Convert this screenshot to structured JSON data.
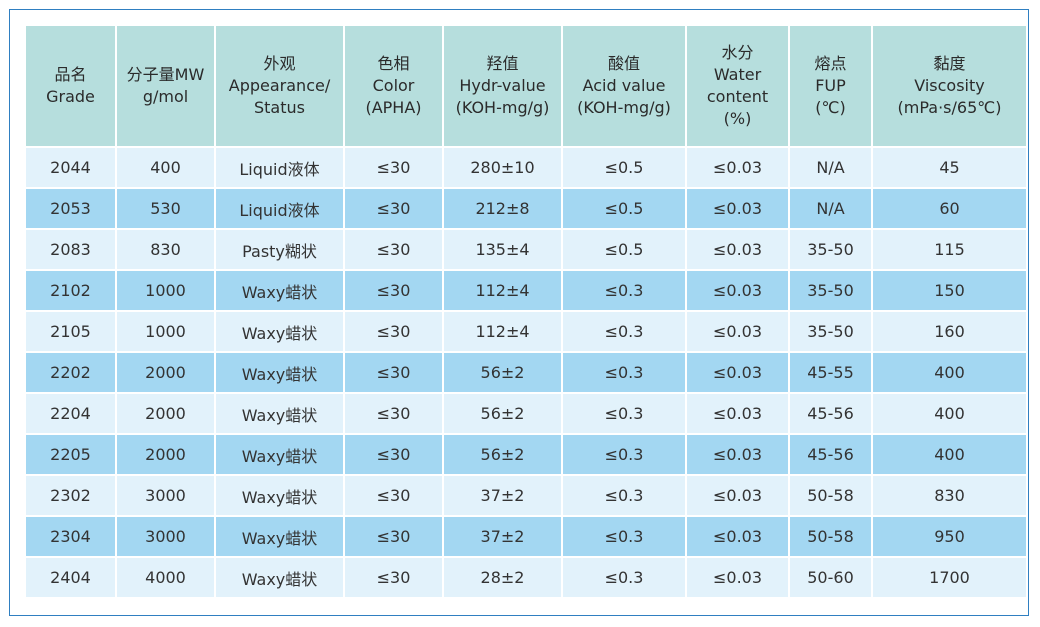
{
  "headers": [
    [
      "品名",
      "Grade"
    ],
    [
      "分子量MW",
      "g/mol"
    ],
    [
      "外观",
      "Appearance/",
      "Status"
    ],
    [
      "色相",
      "Color",
      "(APHA)"
    ],
    [
      "羟值",
      "Hydr-value",
      "(KOH-mg/g)"
    ],
    [
      "酸值",
      "Acid value",
      "(KOH-mg/g)"
    ],
    [
      "水分",
      "Water",
      "content",
      "(%)"
    ],
    [
      "熔点",
      "FUP",
      "(℃)"
    ],
    [
      "黏度",
      "Viscosity",
      "(mPa·s/65℃)"
    ]
  ],
  "rows": [
    [
      "2044",
      "400",
      "Liquid液体",
      "≤30",
      "280±10",
      "≤0.5",
      "≤0.03",
      "N/A",
      "45"
    ],
    [
      "2053",
      "530",
      "Liquid液体",
      "≤30",
      "212±8",
      "≤0.5",
      "≤0.03",
      "N/A",
      "60"
    ],
    [
      "2083",
      "830",
      "Pasty糊状",
      "≤30",
      "135±4",
      "≤0.5",
      "≤0.03",
      "35-50",
      "115"
    ],
    [
      "2102",
      "1000",
      "Waxy蜡状",
      "≤30",
      "112±4",
      "≤0.3",
      "≤0.03",
      "35-50",
      "150"
    ],
    [
      "2105",
      "1000",
      "Waxy蜡状",
      "≤30",
      "112±4",
      "≤0.3",
      "≤0.03",
      "35-50",
      "160"
    ],
    [
      "2202",
      "2000",
      "Waxy蜡状",
      "≤30",
      "56±2",
      "≤0.3",
      "≤0.03",
      "45-55",
      "400"
    ],
    [
      "2204",
      "2000",
      "Waxy蜡状",
      "≤30",
      "56±2",
      "≤0.3",
      "≤0.03",
      "45-56",
      "400"
    ],
    [
      "2205",
      "2000",
      "Waxy蜡状",
      "≤30",
      "56±2",
      "≤0.3",
      "≤0.03",
      "45-56",
      "400"
    ],
    [
      "2302",
      "3000",
      "Waxy蜡状",
      "≤30",
      "37±2",
      "≤0.3",
      "≤0.03",
      "50-58",
      "830"
    ],
    [
      "2304",
      "3000",
      "Waxy蜡状",
      "≤30",
      "37±2",
      "≤0.3",
      "≤0.03",
      "50-58",
      "950"
    ],
    [
      "2404",
      "4000",
      "Waxy蜡状",
      "≤30",
      "28±2",
      "≤0.3",
      "≤0.03",
      "50-60",
      "1700"
    ]
  ],
  "colors": {
    "header_bg": "#b6dedd",
    "row_light": "#e2f2fb",
    "row_dark": "#a3d7f2",
    "frame": "#2f7fc1"
  }
}
